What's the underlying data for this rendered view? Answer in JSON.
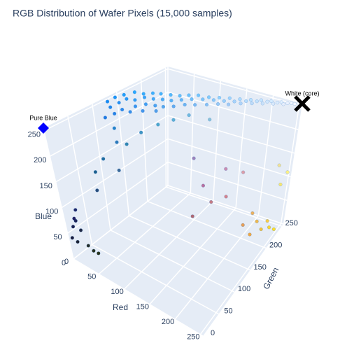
{
  "chart_data": {
    "type": "scatter3d",
    "title": "RGB Distribution of Wafer Pixels (15,000 samples)",
    "x_label": "Red",
    "y_label": "Green",
    "z_label": "Blue",
    "xlim": [
      0,
      255
    ],
    "ylim": [
      0,
      255
    ],
    "zlim": [
      0,
      255
    ],
    "xticks": [
      0,
      50,
      100,
      150,
      200,
      250
    ],
    "yticks": [
      0,
      50,
      100,
      150,
      200,
      250
    ],
    "zticks": [
      0,
      50,
      100,
      150,
      200,
      250
    ],
    "grid": true,
    "x": [
      0,
      5,
      8,
      12,
      15,
      20,
      22,
      25,
      30,
      33,
      38,
      40,
      45,
      48,
      52,
      55,
      60,
      63,
      68,
      70,
      75,
      80,
      84,
      88,
      92,
      96,
      100,
      105,
      110,
      115,
      120,
      125,
      130,
      135,
      140,
      145,
      150,
      155,
      160,
      165,
      170,
      175,
      180,
      185,
      190,
      195,
      200,
      205,
      210,
      215,
      220,
      225,
      230,
      235,
      240,
      245,
      250,
      18,
      35,
      50,
      65,
      10,
      15,
      25,
      10,
      30,
      45,
      60,
      5,
      20,
      40,
      80,
      100,
      130,
      5,
      8,
      3,
      10,
      6,
      15,
      20,
      25,
      12,
      9,
      150,
      180,
      200,
      220,
      190,
      170,
      210,
      240,
      250,
      245,
      235,
      250,
      255,
      240,
      230,
      250,
      255,
      245
    ],
    "y": [
      130,
      140,
      125,
      150,
      135,
      145,
      160,
      128,
      150,
      165,
      140,
      158,
      170,
      150,
      162,
      175,
      155,
      168,
      180,
      160,
      172,
      185,
      165,
      178,
      190,
      175,
      186,
      195,
      180,
      192,
      200,
      188,
      198,
      205,
      195,
      203,
      210,
      200,
      208,
      215,
      210,
      217,
      222,
      218,
      224,
      228,
      225,
      230,
      234,
      232,
      236,
      240,
      238,
      242,
      246,
      248,
      252,
      120,
      132,
      140,
      150,
      110,
      120,
      110,
      95,
      125,
      140,
      160,
      80,
      60,
      90,
      170,
      180,
      190,
      10,
      15,
      5,
      20,
      12,
      25,
      30,
      35,
      8,
      18,
      120,
      100,
      130,
      150,
      110,
      90,
      120,
      180,
      200,
      190,
      170,
      210,
      220,
      160,
      150,
      230,
      240,
      225
    ],
    "z": [
      245,
      250,
      238,
      252,
      244,
      248,
      255,
      236,
      246,
      252,
      240,
      250,
      254,
      242,
      248,
      253,
      240,
      247,
      252,
      238,
      246,
      251,
      240,
      248,
      253,
      242,
      249,
      254,
      243,
      250,
      252,
      244,
      250,
      253,
      246,
      250,
      254,
      247,
      251,
      254,
      249,
      252,
      254,
      250,
      253,
      255,
      251,
      254,
      255,
      252,
      254,
      255,
      253,
      255,
      255,
      254,
      255,
      230,
      232,
      234,
      233,
      225,
      200,
      180,
      150,
      170,
      190,
      200,
      130,
      110,
      140,
      210,
      220,
      215,
      60,
      70,
      40,
      50,
      30,
      20,
      10,
      5,
      80,
      90,
      180,
      150,
      170,
      160,
      120,
      100,
      130,
      60,
      50,
      40,
      80,
      30,
      20,
      50,
      70,
      100,
      120,
      140
    ],
    "markers": [
      {
        "name": "Pure Blue",
        "color": "#0000ff",
        "symbol": "diamond",
        "x": 0,
        "y": 0,
        "z": 255
      },
      {
        "name": "White (core)",
        "color": "#000000",
        "symbol": "x",
        "x": 255,
        "y": 255,
        "z": 255
      }
    ]
  }
}
